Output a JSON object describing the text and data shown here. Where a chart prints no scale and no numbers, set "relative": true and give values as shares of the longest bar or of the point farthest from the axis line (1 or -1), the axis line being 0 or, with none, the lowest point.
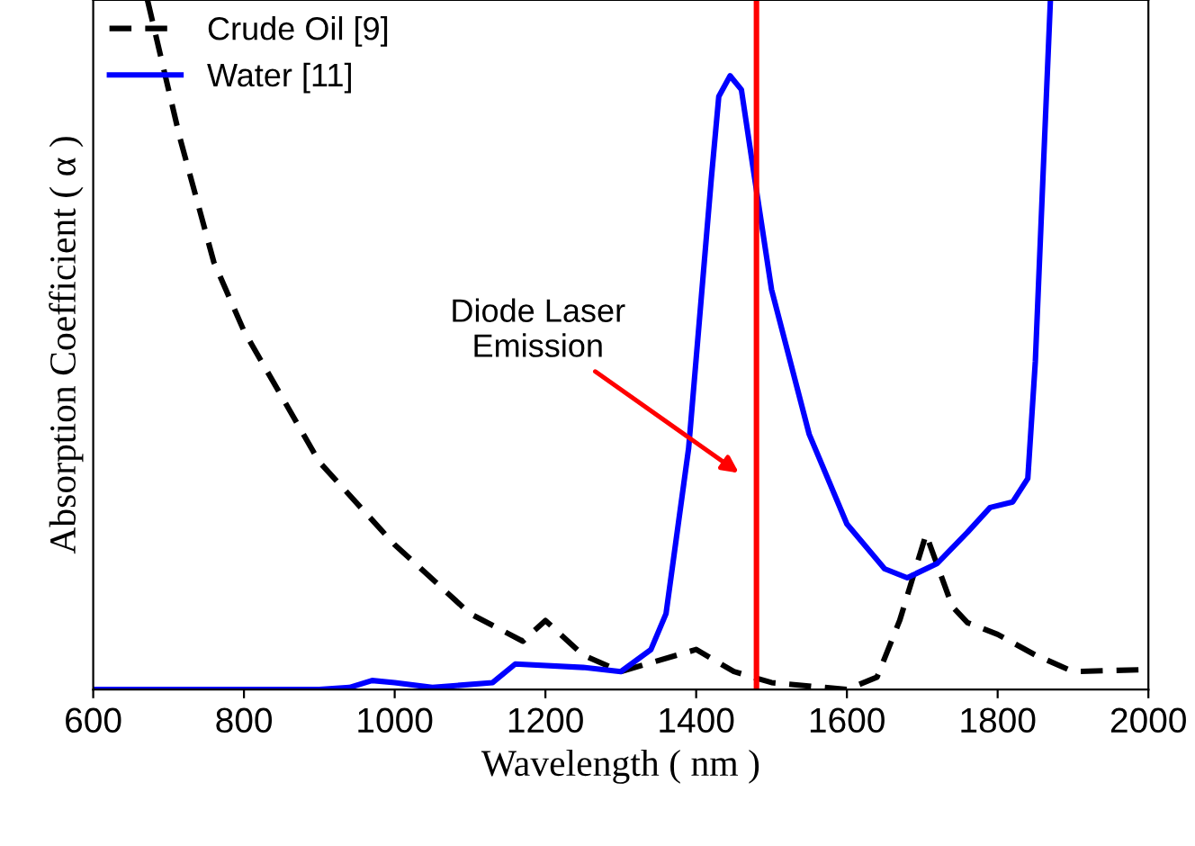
{
  "chart_data": {
    "type": "line",
    "relative": true,
    "xlabel": "Wavelength ( nm )",
    "ylabel": "Absorption Coefficient ( α )",
    "xlim": [
      600,
      2000
    ],
    "xticks": [
      600,
      800,
      1000,
      1200,
      1400,
      1600,
      1800,
      2000
    ],
    "legend": "top left",
    "grid": false,
    "series": [
      {
        "name": "Crude Oil [9]",
        "color": "#000000",
        "line_style": "dashed",
        "x": [
          672,
          715,
          760,
          800,
          900,
          1000,
          1100,
          1170,
          1200,
          1250,
          1300,
          1400,
          1450,
          1500,
          1600,
          1640,
          1670,
          1705,
          1740,
          1760,
          1800,
          1850,
          1900,
          2000
        ],
        "values": [
          1.0,
          0.8,
          0.62,
          0.52,
          0.33,
          0.21,
          0.11,
          0.07,
          0.1,
          0.05,
          0.026,
          0.058,
          0.026,
          0.01,
          0,
          0.018,
          0.1,
          0.225,
          0.12,
          0.097,
          0.08,
          0.05,
          0.026,
          0.029
        ]
      },
      {
        "name": "Water [11]",
        "color": "#0000ff",
        "line_style": "solid",
        "x": [
          600,
          900,
          940,
          970,
          1000,
          1050,
          1130,
          1160,
          1250,
          1300,
          1340,
          1360,
          1390,
          1420,
          1430,
          1445,
          1460,
          1475,
          1500,
          1550,
          1600,
          1650,
          1680,
          1720,
          1760,
          1790,
          1820,
          1840,
          1850,
          1860,
          1870
        ],
        "values": [
          0,
          0,
          0.003,
          0.013,
          0.01,
          0.003,
          0.01,
          0.037,
          0.032,
          0.026,
          0.058,
          0.11,
          0.35,
          0.74,
          0.86,
          0.89,
          0.87,
          0.76,
          0.58,
          0.37,
          0.24,
          0.175,
          0.162,
          0.183,
          0.228,
          0.264,
          0.272,
          0.306,
          0.476,
          0.74,
          1.0
        ]
      }
    ],
    "ref_lines": [
      {
        "axis": "x",
        "value": 1480,
        "color": "#ff0000"
      }
    ],
    "annotations": [
      "Diode Laser\nEmission"
    ]
  }
}
